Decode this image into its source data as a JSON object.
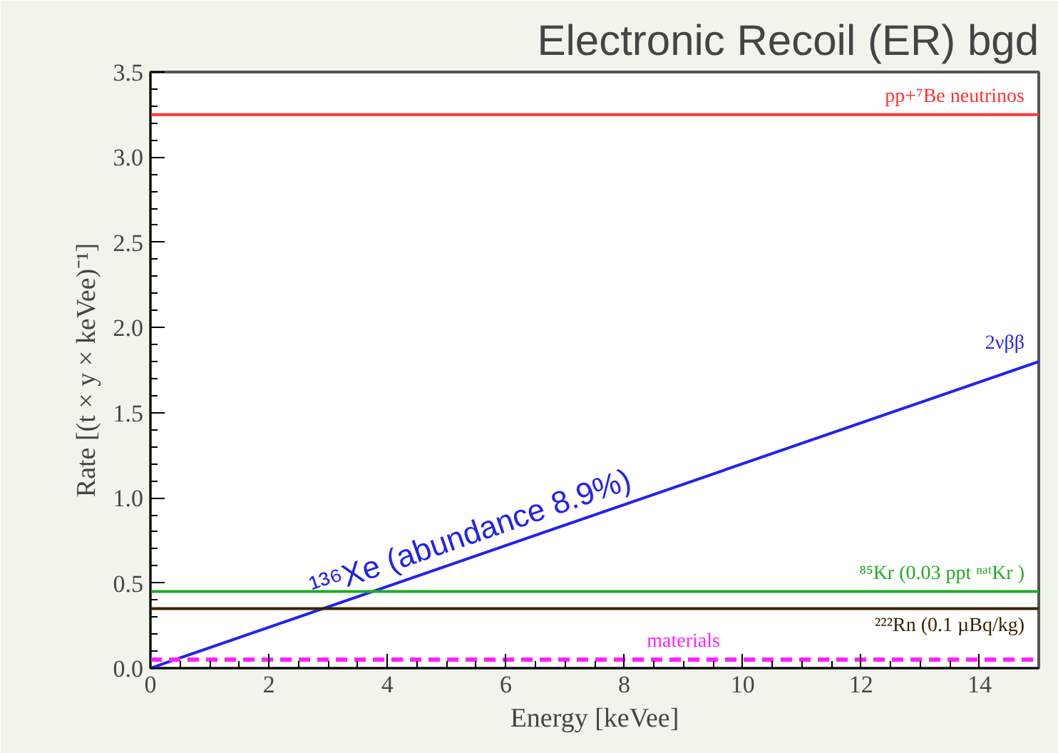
{
  "chart_data": {
    "type": "line",
    "title": "Electronic Recoil (ER) bgd",
    "xlabel": "Energy [keVee]",
    "ylabel": "Rate [(t × y × keVee)⁻¹]",
    "x": [
      0,
      15
    ],
    "series": [
      {
        "name": "pp+⁷Be neutrinos",
        "color": "#ff3333",
        "values": [
          3.25,
          3.25
        ]
      },
      {
        "name": "2νββ",
        "color": "#2222ee",
        "values": [
          0.0,
          1.8
        ]
      },
      {
        "name": "⁸⁵Kr (0.03 ppt ⁿᵃᵗKr )",
        "color": "#22aa22",
        "values": [
          0.45,
          0.45
        ]
      },
      {
        "name": "²²²Rn (0.1 µBq/kg)",
        "color": "#3a2200",
        "values": [
          0.35,
          0.35
        ]
      },
      {
        "name": "materials",
        "color": "#ff22ff",
        "values": [
          0.05,
          0.05
        ],
        "line_style": "dashed"
      }
    ],
    "annotations": [
      {
        "text": "¹³⁶Xe (abundance 8.9%)",
        "x": 5.5,
        "y": 0.66
      }
    ],
    "xlim": [
      0,
      15
    ],
    "ylim": [
      0,
      3.5
    ],
    "xticks": [
      0,
      2,
      4,
      6,
      8,
      10,
      12,
      14
    ],
    "yticks": [
      {
        "value": 0,
        "label": "0.0"
      },
      0.5,
      {
        "value": 1,
        "label": "1.0"
      },
      1.5,
      {
        "value": 2,
        "label": "2.0"
      },
      2.5,
      {
        "value": 3,
        "label": "3.0"
      },
      3.5
    ],
    "grid": false
  }
}
